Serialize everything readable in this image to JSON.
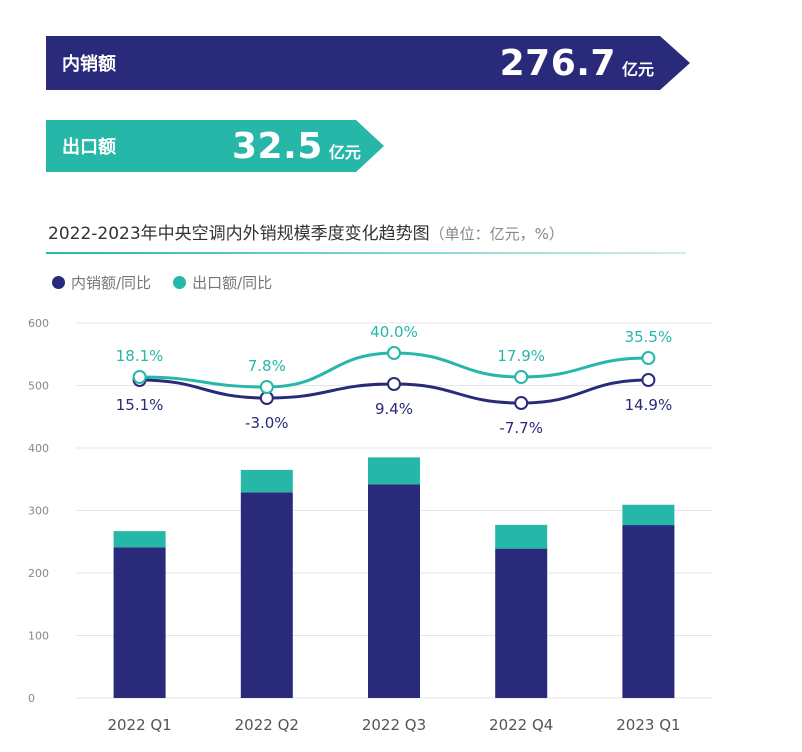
{
  "banners": {
    "domestic": {
      "label": "内销额",
      "value": "276.7",
      "unit": "亿元",
      "color": "#2a2a7a"
    },
    "export": {
      "label": "出口额",
      "value": "32.5",
      "unit": "亿元",
      "color": "#27b7a8"
    }
  },
  "chart_data": {
    "type": "bar",
    "title": "2022-2023年中央空调内外销规模季度变化趋势图",
    "unit_note": "（单位：亿元，%）",
    "categories": [
      "2022 Q1",
      "2022 Q2",
      "2022 Q3",
      "2022 Q4",
      "2023 Q1"
    ],
    "ylim": [
      0,
      600
    ],
    "yticks": [
      0,
      100,
      200,
      300,
      400,
      500,
      600
    ],
    "grid": true,
    "stacked": true,
    "series": [
      {
        "name": "内销额",
        "values": [
          241,
          329,
          342,
          239,
          276.7
        ],
        "color": "#2a2a7a"
      },
      {
        "name": "出口额",
        "values": [
          26,
          36,
          43,
          38,
          32.5
        ],
        "color": "#27b7a8"
      }
    ],
    "lines": [
      {
        "name": "内销额/同比",
        "labels": [
          "15.1%",
          "-3.0%",
          "9.4%",
          "-7.7%",
          "14.9%"
        ],
        "color": "#2a2a7a",
        "label_position": "below"
      },
      {
        "name": "出口额/同比",
        "labels": [
          "18.1%",
          "7.8%",
          "40.0%",
          "17.9%",
          "35.5%"
        ],
        "color": "#27b7a8",
        "label_position": "above"
      }
    ],
    "legend": {
      "placement": "top-left",
      "items": [
        {
          "label": "内销额/同比",
          "color": "#2a2a7a"
        },
        {
          "label": "出口额/同比",
          "color": "#27b7a8"
        }
      ]
    }
  }
}
